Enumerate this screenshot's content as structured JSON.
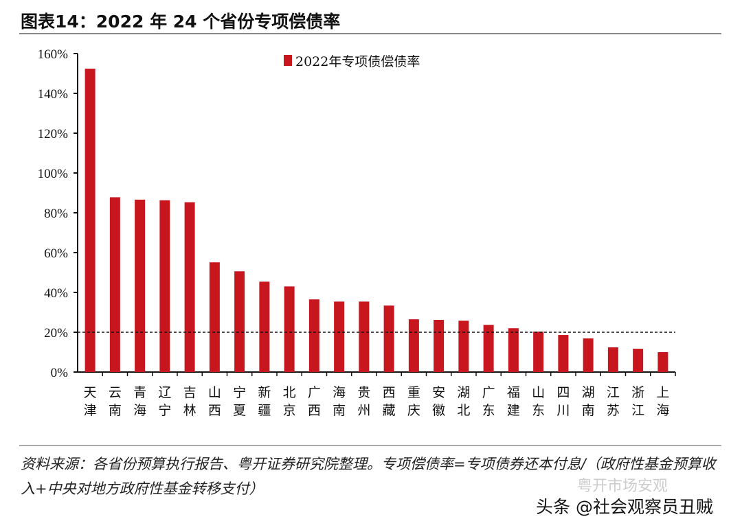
{
  "title": "图表14：2022 年 24 个省份专项偿债率",
  "note": "资料来源：各省份预算执行报告、粤开证券研究院整理。专项偿债率=专项债券还本付息/（政府性基金预算收入+中央对地方政府性基金转移支付）",
  "watermark": {
    "account": "粤开市场安观",
    "platform": "头条 @社会观察员丑贼"
  },
  "chart_data": {
    "type": "bar",
    "title": "",
    "ylim": [
      0,
      160
    ],
    "yticks": [
      "0%",
      "20%",
      "40%",
      "60%",
      "80%",
      "100%",
      "120%",
      "140%",
      "160%"
    ],
    "grid": false,
    "legend": "top-center",
    "color": "#c8161e",
    "reference_line": {
      "value": 20,
      "style": "dashed"
    },
    "categories": [
      "天津",
      "云南",
      "青海",
      "辽宁",
      "吉林",
      "山西",
      "宁夏",
      "新疆",
      "北京",
      "广西",
      "海南",
      "贵州",
      "西藏",
      "重庆",
      "安徽",
      "湖北",
      "广东",
      "福建",
      "山东",
      "四川",
      "湖南",
      "江苏",
      "浙江",
      "上海"
    ],
    "series": [
      {
        "name": "2022年专项债偿债率",
        "values": [
          152.4,
          87.8,
          86.6,
          86.3,
          85.3,
          55.1,
          50.6,
          45.4,
          43.0,
          36.5,
          35.4,
          35.4,
          33.4,
          26.5,
          26.2,
          25.8,
          23.7,
          22.0,
          20.3,
          18.6,
          16.9,
          12.4,
          11.7,
          10.0
        ]
      }
    ]
  }
}
